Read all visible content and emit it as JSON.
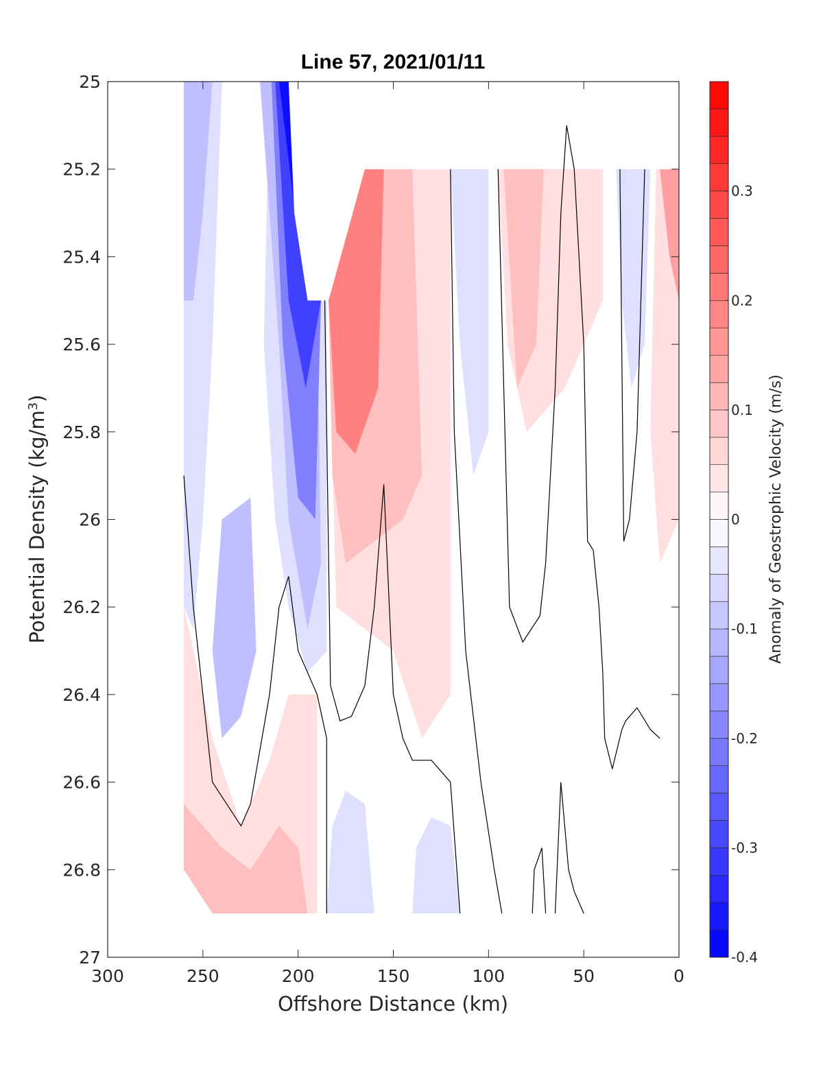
{
  "chart_data": {
    "type": "heatmap",
    "title": "Line 57, 2021/01/11",
    "xlabel": "Offshore Distance (km)",
    "ylabel": "Potential Density (kg/m",
    "ylabel_sup": "3",
    "ylabel_close": ")",
    "xlim": [
      300,
      0
    ],
    "ylim": [
      25,
      27
    ],
    "x_reversed": true,
    "y_reversed": true,
    "xticks": [
      300,
      250,
      200,
      150,
      100,
      50,
      0
    ],
    "xtick_labels": [
      "300",
      "250",
      "200",
      "150",
      "100",
      "50",
      "0"
    ],
    "yticks": [
      25,
      25.2,
      25.4,
      25.6,
      25.8,
      26,
      26.2,
      26.4,
      26.6,
      26.8,
      27
    ],
    "ytick_labels": [
      "25",
      "25.2",
      "25.4",
      "25.6",
      "25.8",
      "26",
      "26.2",
      "26.4",
      "26.6",
      "26.8",
      "27"
    ],
    "colorbar": {
      "label": "Anomaly of Geostrophic Velocity (m/s)",
      "range": [
        -0.4,
        0.4
      ],
      "ticks": [
        -0.4,
        -0.3,
        -0.2,
        -0.1,
        0,
        0.1,
        0.2,
        0.3
      ],
      "tick_labels": [
        "-0.4",
        "-0.3",
        "-0.2",
        "-0.1",
        "0",
        "0.1",
        "0.2",
        "0.3"
      ],
      "levels": 32,
      "negative_color": "#0000ff",
      "positive_color": "#ff0000",
      "zero_color": "#ffffff"
    },
    "filled_contours": [
      {
        "sign": "negative",
        "level": -0.05,
        "points": [
          [
            260,
            25
          ],
          [
            215,
            25
          ],
          [
            218,
            25.6
          ],
          [
            212,
            26.0
          ],
          [
            205,
            26.2
          ],
          [
            195,
            26.35
          ],
          [
            185,
            26.3
          ],
          [
            185,
            25.5
          ],
          [
            195,
            25.5
          ],
          [
            200,
            25.3
          ],
          [
            205,
            25
          ]
        ]
      },
      {
        "sign": "negative",
        "level": -0.05,
        "points": [
          [
            260,
            25
          ],
          [
            240,
            25
          ],
          [
            245,
            25.6
          ],
          [
            250,
            26
          ],
          [
            255,
            26.25
          ],
          [
            260,
            26.2
          ]
        ]
      },
      {
        "sign": "negative",
        "level": -0.1,
        "points": [
          [
            260,
            25
          ],
          [
            245,
            25
          ],
          [
            250,
            25.3
          ],
          [
            255,
            25.5
          ],
          [
            260,
            25.5
          ]
        ]
      },
      {
        "sign": "negative",
        "level": -0.1,
        "points": [
          [
            240,
            26.0
          ],
          [
            225,
            25.95
          ],
          [
            222,
            26.3
          ],
          [
            230,
            26.45
          ],
          [
            240,
            26.5
          ],
          [
            245,
            26.3
          ]
        ]
      },
      {
        "sign": "negative",
        "level": -0.1,
        "points": [
          [
            220,
            25
          ],
          [
            210,
            25.6
          ],
          [
            205,
            26.0
          ],
          [
            195,
            26.25
          ],
          [
            188,
            26.1
          ],
          [
            190,
            25.5
          ],
          [
            196,
            25.4
          ],
          [
            202,
            25.0
          ]
        ]
      },
      {
        "sign": "negative",
        "level": -0.2,
        "points": [
          [
            214,
            25
          ],
          [
            208,
            25.6
          ],
          [
            200,
            25.95
          ],
          [
            191,
            26.0
          ],
          [
            188,
            25.5
          ],
          [
            196,
            25.4
          ],
          [
            202,
            25.0
          ]
        ]
      },
      {
        "sign": "negative",
        "level": -0.3,
        "points": [
          [
            212,
            25
          ],
          [
            205,
            25.5
          ],
          [
            196,
            25.7
          ],
          [
            188,
            25.5
          ],
          [
            196,
            25.4
          ],
          [
            202,
            25.0
          ]
        ]
      },
      {
        "sign": "negative",
        "level": -0.38,
        "points": [
          [
            210,
            25
          ],
          [
            203,
            25.25
          ],
          [
            196,
            25.45
          ],
          [
            200,
            25.15
          ],
          [
            202,
            25.0
          ]
        ]
      },
      {
        "sign": "negative",
        "level": -0.05,
        "points": [
          [
            120,
            25.2
          ],
          [
            100,
            25.2
          ],
          [
            100,
            25.8
          ],
          [
            108,
            25.9
          ],
          [
            115,
            25.6
          ]
        ]
      },
      {
        "sign": "negative",
        "level": -0.05,
        "points": [
          [
            33,
            25.2
          ],
          [
            15,
            25.2
          ],
          [
            18,
            25.6
          ],
          [
            25,
            25.7
          ],
          [
            30,
            25.5
          ]
        ]
      },
      {
        "sign": "negative",
        "level": -0.05,
        "points": [
          [
            185,
            26.9
          ],
          [
            160,
            26.9
          ],
          [
            165,
            26.65
          ],
          [
            175,
            26.62
          ],
          [
            182,
            26.7
          ]
        ]
      },
      {
        "sign": "negative",
        "level": -0.05,
        "points": [
          [
            140,
            26.9
          ],
          [
            115,
            26.9
          ],
          [
            120,
            26.7
          ],
          [
            130,
            26.68
          ],
          [
            138,
            26.75
          ]
        ]
      },
      {
        "sign": "positive",
        "level": 0.05,
        "points": [
          [
            184,
            25.5
          ],
          [
            158,
            25.2
          ],
          [
            120,
            25.2
          ],
          [
            120,
            26.4
          ],
          [
            135,
            26.5
          ],
          [
            150,
            26.3
          ],
          [
            165,
            26.25
          ],
          [
            180,
            26.2
          ]
        ]
      },
      {
        "sign": "positive",
        "level": 0.1,
        "points": [
          [
            184,
            25.5
          ],
          [
            160,
            25.2
          ],
          [
            140,
            25.2
          ],
          [
            135,
            25.9
          ],
          [
            145,
            26.0
          ],
          [
            160,
            26.05
          ],
          [
            175,
            26.1
          ],
          [
            182,
            25.9
          ]
        ]
      },
      {
        "sign": "positive",
        "level": 0.2,
        "points": [
          [
            184,
            25.5
          ],
          [
            165,
            25.2
          ],
          [
            155,
            25.2
          ],
          [
            158,
            25.7
          ],
          [
            170,
            25.85
          ],
          [
            180,
            25.8
          ]
        ]
      },
      {
        "sign": "positive",
        "level": 0.05,
        "points": [
          [
            95,
            25.2
          ],
          [
            60,
            25.1
          ],
          [
            40,
            25.1
          ],
          [
            40,
            25.5
          ],
          [
            60,
            25.7
          ],
          [
            80,
            25.8
          ],
          [
            90,
            25.6
          ]
        ]
      },
      {
        "sign": "positive",
        "level": 0.1,
        "points": [
          [
            92,
            25.2
          ],
          [
            75,
            25.1
          ],
          [
            70,
            25.1
          ],
          [
            75,
            25.6
          ],
          [
            85,
            25.7
          ]
        ]
      },
      {
        "sign": "positive",
        "level": 0.05,
        "points": [
          [
            12,
            25.2
          ],
          [
            0,
            25.2
          ],
          [
            0,
            26.0
          ],
          [
            10,
            26.1
          ],
          [
            15,
            25.8
          ]
        ]
      },
      {
        "sign": "positive",
        "level": 0.15,
        "points": [
          [
            10,
            25.2
          ],
          [
            0,
            25.2
          ],
          [
            0,
            25.5
          ],
          [
            5,
            25.4
          ]
        ]
      },
      {
        "sign": "positive",
        "level": 0.05,
        "points": [
          [
            260,
            26.2
          ],
          [
            245,
            26.5
          ],
          [
            230,
            26.7
          ],
          [
            215,
            26.55
          ],
          [
            205,
            26.4
          ],
          [
            190,
            26.4
          ],
          [
            190,
            26.9
          ],
          [
            245,
            26.9
          ],
          [
            260,
            26.8
          ]
        ]
      },
      {
        "sign": "positive",
        "level": 0.1,
        "points": [
          [
            260,
            26.65
          ],
          [
            240,
            26.75
          ],
          [
            225,
            26.8
          ],
          [
            210,
            26.7
          ],
          [
            200,
            26.75
          ],
          [
            195,
            26.9
          ],
          [
            245,
            26.9
          ],
          [
            260,
            26.8
          ]
        ]
      }
    ],
    "contour_lines": [
      [
        [
          260,
          25.9
        ],
        [
          255,
          26.2
        ],
        [
          245,
          26.6
        ],
        [
          230,
          26.7
        ],
        [
          225,
          26.65
        ],
        [
          215,
          26.4
        ],
        [
          210,
          26.2
        ],
        [
          205,
          26.13
        ],
        [
          200,
          26.3
        ],
        [
          190,
          26.4
        ],
        [
          185,
          26.5
        ],
        [
          185,
          26.9
        ]
      ],
      [
        [
          186,
          25.5
        ],
        [
          183,
          26.38
        ],
        [
          178,
          26.46
        ],
        [
          172,
          26.45
        ],
        [
          165,
          26.38
        ],
        [
          160,
          26.2
        ],
        [
          155,
          25.92
        ],
        [
          150,
          26.4
        ],
        [
          145,
          26.5
        ],
        [
          140,
          26.55
        ],
        [
          130,
          26.55
        ],
        [
          120,
          26.6
        ],
        [
          115,
          26.9
        ]
      ],
      [
        [
          120,
          25.2
        ],
        [
          118,
          25.8
        ],
        [
          112,
          26.3
        ],
        [
          104,
          26.6
        ],
        [
          97,
          26.8
        ],
        [
          93,
          26.9
        ]
      ],
      [
        [
          95,
          25.2
        ],
        [
          89,
          26.2
        ],
        [
          82,
          26.28
        ],
        [
          73,
          26.22
        ],
        [
          70,
          26.1
        ],
        [
          65,
          25.7
        ],
        [
          62,
          25.3
        ],
        [
          59,
          25.1
        ],
        [
          55,
          25.2
        ],
        [
          50,
          25.6
        ],
        [
          48,
          26.05
        ],
        [
          45,
          26.07
        ],
        [
          42,
          26.2
        ],
        [
          40,
          26.35
        ],
        [
          39,
          26.5
        ],
        [
          35,
          26.57
        ],
        [
          30,
          26.48
        ],
        [
          28,
          26.46
        ],
        [
          22,
          26.43
        ],
        [
          15,
          26.48
        ],
        [
          10,
          26.5
        ]
      ],
      [
        [
          31,
          25.2
        ],
        [
          29,
          26.05
        ],
        [
          26,
          26.0
        ],
        [
          22,
          25.8
        ],
        [
          18,
          25.2
        ]
      ],
      [
        [
          77,
          26.9
        ],
        [
          76,
          26.8
        ],
        [
          72,
          26.75
        ],
        [
          70,
          26.9
        ]
      ],
      [
        [
          65,
          26.9
        ],
        [
          62,
          26.6
        ],
        [
          58,
          26.8
        ],
        [
          55,
          26.85
        ],
        [
          50,
          26.9
        ]
      ]
    ],
    "masked_region": [
      [
        205,
        25
      ],
      [
        0,
        25
      ],
      [
        0,
        25.2
      ],
      [
        180,
        25.2
      ],
      [
        185,
        25.5
      ],
      [
        195,
        25.5
      ],
      [
        202,
        25.3
      ]
    ]
  }
}
